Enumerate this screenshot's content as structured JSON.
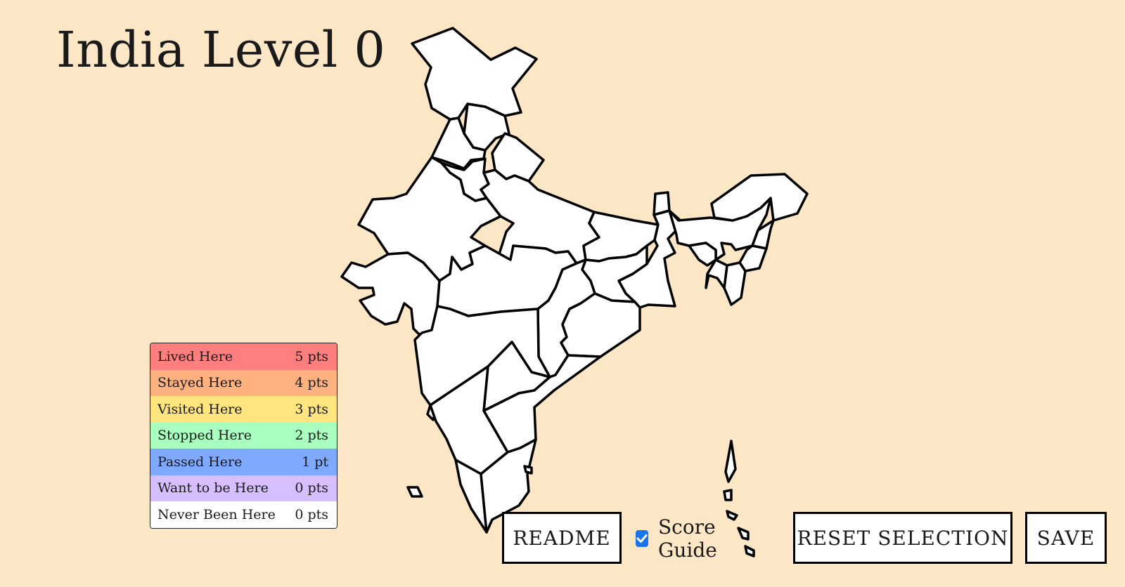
{
  "title": "India Level 0",
  "legend": [
    {
      "label": "Lived Here",
      "points": "5 pts",
      "color": "#ff7f7f"
    },
    {
      "label": "Stayed Here",
      "points": "4 pts",
      "color": "#ffb27f"
    },
    {
      "label": "Visited Here",
      "points": "3 pts",
      "color": "#ffe57f"
    },
    {
      "label": "Stopped Here",
      "points": "2 pts",
      "color": "#a8ffbf"
    },
    {
      "label": "Passed Here",
      "points": "1 pt",
      "color": "#7fa9ff"
    },
    {
      "label": "Want to be Here",
      "points": "0 pts",
      "color": "#d7bfff"
    },
    {
      "label": "Never Been Here",
      "points": "0 pts",
      "color": "#ffffff"
    }
  ],
  "controls": {
    "readme_label": "README",
    "score_guide_label": "Score Guide",
    "score_guide_checked": true,
    "reset_label": "RESET SELECTION",
    "save_label": "SAVE"
  },
  "colors": {
    "background": "#fbe7c5",
    "checkbox_accent": "#1a73e8"
  }
}
